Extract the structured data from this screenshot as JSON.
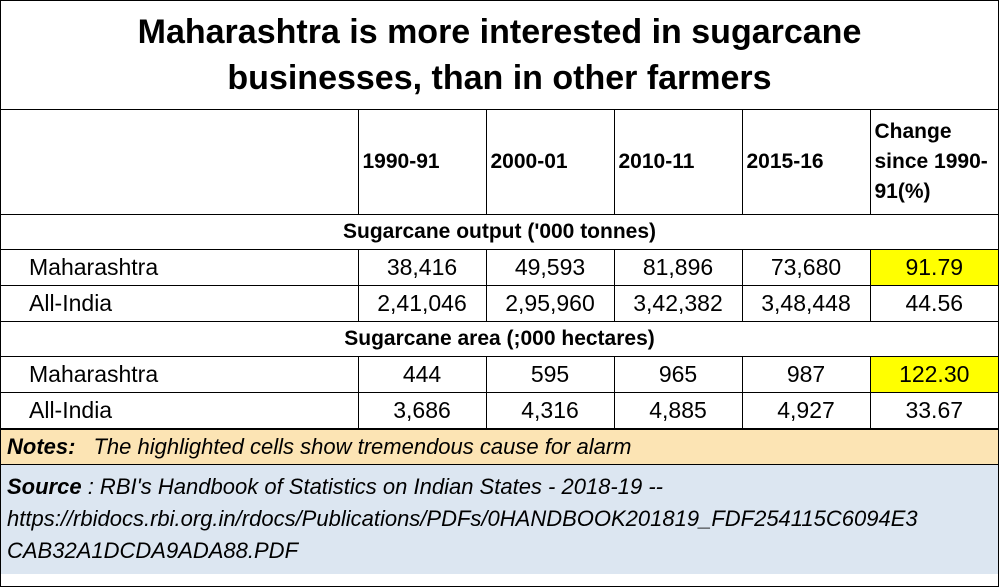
{
  "title_lines": [
    "Maharashtra is more interested in sugarcane",
    "businesses, than in other farmers"
  ],
  "chart_data": {
    "type": "table",
    "columns": [
      "",
      "1990-91",
      "2000-01",
      "2010-11",
      "2015-16",
      "Change since 1990-91(%)"
    ],
    "change_header_lines": [
      "Change",
      "since 1990-",
      "91(%)"
    ],
    "sections": [
      {
        "label": "Sugarcane output ('000 tonnes)",
        "rows": [
          {
            "name": "Maharashtra",
            "values": [
              "38,416",
              "49,593",
              "81,896",
              "73,680"
            ],
            "change": "91.79",
            "highlight": true
          },
          {
            "name": "All-India",
            "values": [
              "2,41,046",
              "2,95,960",
              "3,42,382",
              "3,48,448"
            ],
            "change": "44.56",
            "highlight": false
          }
        ]
      },
      {
        "label": "Sugarcane area (;000 hectares)",
        "rows": [
          {
            "name": "Maharashtra",
            "values": [
              "444",
              "595",
              "965",
              "987"
            ],
            "change": "122.30",
            "highlight": true
          },
          {
            "name": "All-India",
            "values": [
              "3,686",
              "4,316",
              "4,885",
              "4,927"
            ],
            "change": "33.67",
            "highlight": false
          }
        ]
      }
    ]
  },
  "notes": {
    "label": "Notes:",
    "text": "The highlighted cells show tremendous cause for alarm"
  },
  "source": {
    "label": "Source",
    "lines": [
      " : RBI's Handbook of Statistics on Indian States - 2018-19 --",
      "https://rbidocs.rbi.org.in/rdocs/Publications/PDFs/0HANDBOOK201819_FDF254115C6094E3",
      "CAB32A1DCDA9ADA88.PDF"
    ]
  },
  "colors": {
    "highlight": "#ffff00",
    "notes_bg": "#fce4b4",
    "source_bg": "#dce6f1"
  }
}
